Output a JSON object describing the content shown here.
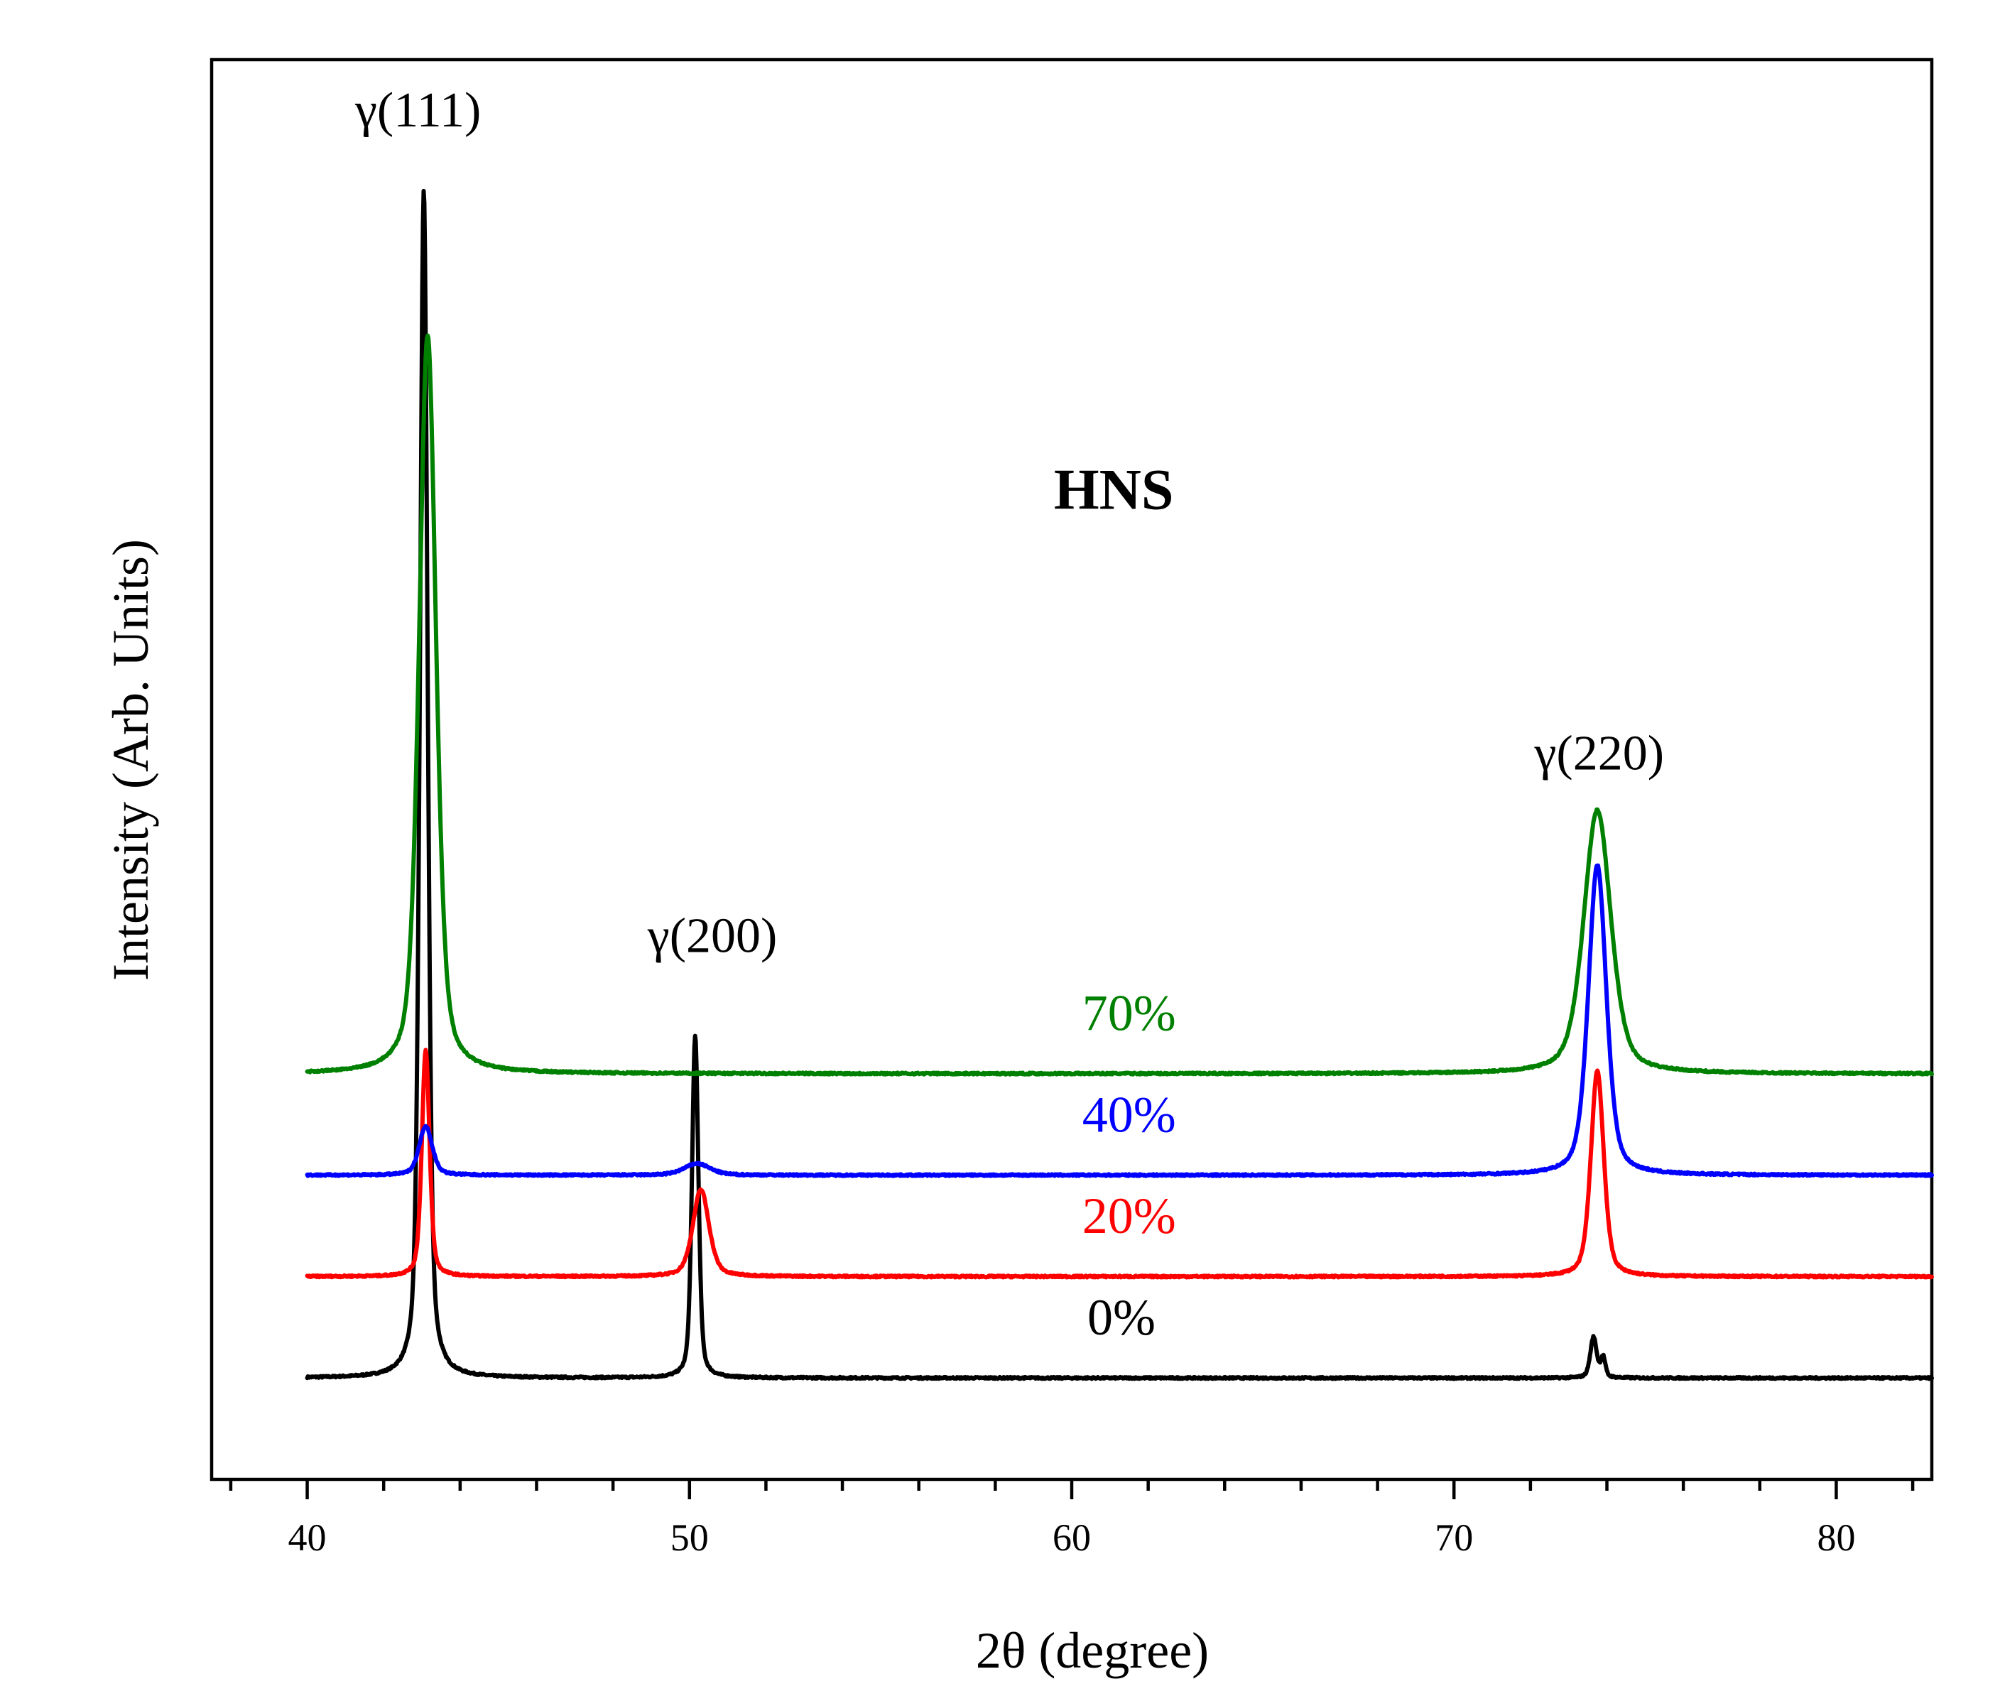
{
  "chart_data": {
    "type": "line",
    "title": "HNS",
    "xlabel": "2θ (degree)",
    "ylabel": "Intensity (Arb. Units)",
    "xlim": [
      37.5,
      82.5
    ],
    "ylim": [
      -0.35,
      4.55
    ],
    "x_ticks": [
      40,
      50,
      60,
      70,
      80
    ],
    "x_tick_labels": [
      "40",
      "50",
      "60",
      "70",
      "80"
    ],
    "x_minor_step": 2,
    "y_ticks_shown": false,
    "x_range": [
      40,
      82.5
    ],
    "series": [
      {
        "name": "0%",
        "color": "#000000",
        "baseline": 0.0,
        "peaks": [
          {
            "x": 43.05,
            "height": 4.1,
            "width": 0.12
          },
          {
            "x": 50.15,
            "height": 1.18,
            "width": 0.1
          },
          {
            "x": 73.65,
            "height": 0.14,
            "width": 0.1
          },
          {
            "x": 73.9,
            "height": 0.07,
            "width": 0.07
          }
        ]
      },
      {
        "name": "20%",
        "color": "#ff0000",
        "baseline": 0.35,
        "peaks": [
          {
            "x": 43.1,
            "height": 0.78,
            "width": 0.12
          },
          {
            "x": 50.3,
            "height": 0.3,
            "width": 0.25
          },
          {
            "x": 73.75,
            "height": 0.71,
            "width": 0.2
          }
        ]
      },
      {
        "name": "40%",
        "color": "#0000ff",
        "baseline": 0.7,
        "peaks": [
          {
            "x": 43.1,
            "height": 0.17,
            "width": 0.2
          },
          {
            "x": 50.2,
            "height": 0.04,
            "width": 0.4
          },
          {
            "x": 73.75,
            "height": 1.07,
            "width": 0.28
          }
        ]
      },
      {
        "name": "70%",
        "color": "#008000",
        "baseline": 1.05,
        "peaks": [
          {
            "x": 43.15,
            "height": 2.55,
            "width": 0.26
          },
          {
            "x": 73.75,
            "height": 0.91,
            "width": 0.42
          }
        ]
      }
    ],
    "series_labels": [
      {
        "text": "0%",
        "x": 61.3,
        "y": 0.15,
        "color": "#000000"
      },
      {
        "text": "20%",
        "x": 61.5,
        "y": 0.5,
        "color": "#ff0000"
      },
      {
        "text": "40%",
        "x": 61.5,
        "y": 0.85,
        "color": "#0000ff"
      },
      {
        "text": "70%",
        "x": 61.5,
        "y": 1.2,
        "color": "#008000"
      }
    ],
    "annotations": [
      {
        "text": "γ(111)",
        "x": 42.9,
        "y": 4.32
      },
      {
        "text": "γ(200)",
        "x": 50.6,
        "y": 1.47
      },
      {
        "text": "γ(220)",
        "x": 73.8,
        "y": 2.1
      }
    ],
    "title_position": {
      "x": 61.1,
      "y": 3.0
    }
  }
}
